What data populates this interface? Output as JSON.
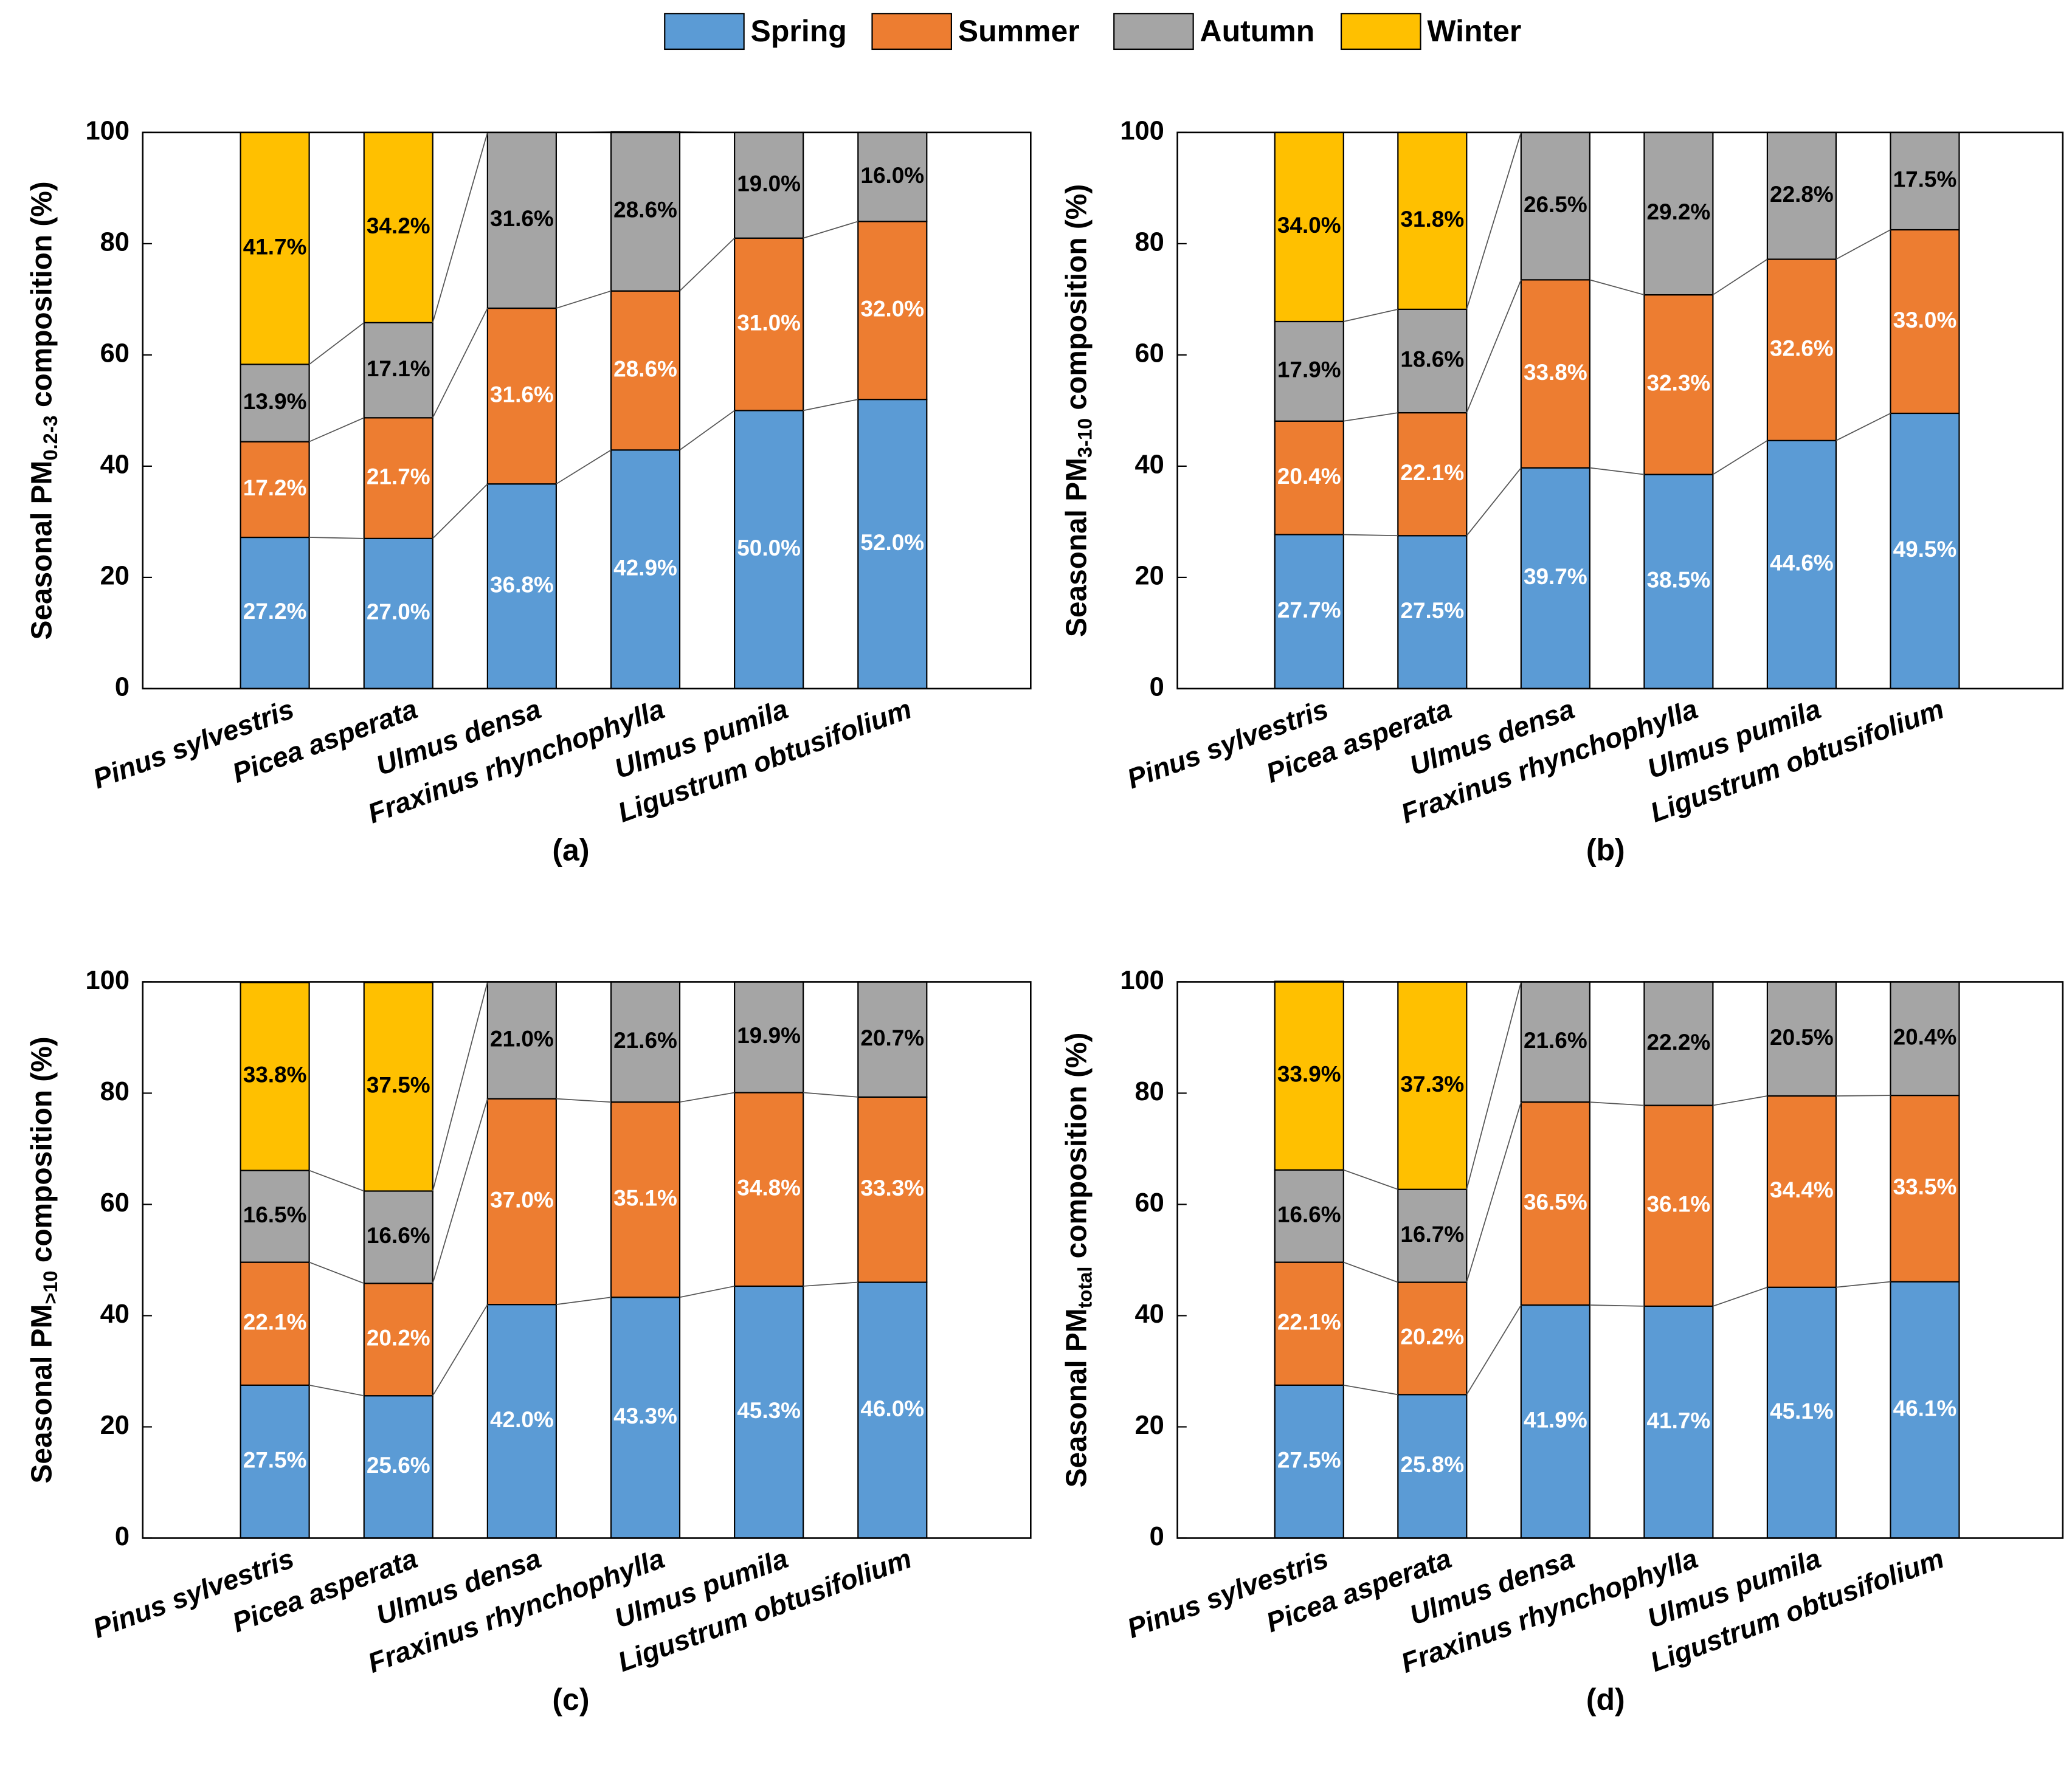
{
  "chart_data": [
    {
      "type": "stacked_bar",
      "panel_label": "(a)",
      "y_label": {
        "prefix": "Seasonal PM",
        "subscript": "0.2-3",
        "suffix": " composition (%)"
      },
      "categories": [
        "Pinus sylvestris",
        "Picea asperata",
        "Ulmus densa",
        "Fraxinus rhynchophylla",
        "Ulmus pumila",
        "Ligustrum obtusifolium"
      ],
      "ylim": [
        0,
        100
      ],
      "yticks": [
        0,
        20,
        40,
        60,
        80,
        100
      ],
      "series": [
        {
          "name": "Spring",
          "color": "#5b9bd5",
          "label_color": "#ffffff",
          "values": [
            27.2,
            27.0,
            36.8,
            42.9,
            50.0,
            52.0
          ],
          "value_labels": [
            "27.2%",
            "27.0%",
            "36.8%",
            "42.9%",
            "50.0%",
            "52.0%"
          ]
        },
        {
          "name": "Summer",
          "color": "#ed7d31",
          "label_color": "#ffffff",
          "values": [
            17.2,
            21.7,
            31.6,
            28.6,
            31.0,
            32.0
          ],
          "value_labels": [
            "17.2%",
            "21.7%",
            "31.6%",
            "28.6%",
            "31.0%",
            "32.0%"
          ]
        },
        {
          "name": "Autumn",
          "color": "#a5a5a5",
          "label_color": "#000000",
          "values": [
            13.9,
            17.1,
            31.6,
            28.6,
            19.0,
            16.0
          ],
          "value_labels": [
            "13.9%",
            "17.1%",
            "31.6%",
            "28.6%",
            "19.0%",
            "16.0%"
          ]
        },
        {
          "name": "Winter",
          "color": "#ffc000",
          "label_color": "#000000",
          "values": [
            41.7,
            34.2,
            null,
            null,
            null,
            null
          ],
          "value_labels": [
            "41.7%",
            "34.2%",
            null,
            null,
            null,
            null
          ]
        }
      ]
    },
    {
      "type": "stacked_bar",
      "panel_label": "(b)",
      "y_label": {
        "prefix": "Seasonal PM",
        "subscript": "3-10",
        "suffix": " composition (%)"
      },
      "categories": [
        "Pinus sylvestris",
        "Picea asperata",
        "Ulmus densa",
        "Fraxinus rhynchophylla",
        "Ulmus pumila",
        "Ligustrum obtusifolium"
      ],
      "ylim": [
        0,
        100
      ],
      "yticks": [
        0,
        20,
        40,
        60,
        80,
        100
      ],
      "series": [
        {
          "name": "Spring",
          "color": "#5b9bd5",
          "label_color": "#ffffff",
          "values": [
            27.7,
            27.5,
            39.7,
            38.5,
            44.6,
            49.5
          ],
          "value_labels": [
            "27.7%",
            "27.5%",
            "39.7%",
            "38.5%",
            "44.6%",
            "49.5%"
          ]
        },
        {
          "name": "Summer",
          "color": "#ed7d31",
          "label_color": "#ffffff",
          "values": [
            20.4,
            22.1,
            33.8,
            32.3,
            32.6,
            33.0
          ],
          "value_labels": [
            "20.4%",
            "22.1%",
            "33.8%",
            "32.3%",
            "32.6%",
            "33.0%"
          ]
        },
        {
          "name": "Autumn",
          "color": "#a5a5a5",
          "label_color": "#000000",
          "values": [
            17.9,
            18.6,
            26.5,
            29.2,
            22.8,
            17.5
          ],
          "value_labels": [
            "17.9%",
            "18.6%",
            "26.5%",
            "29.2%",
            "22.8%",
            "17.5%"
          ]
        },
        {
          "name": "Winter",
          "color": "#ffc000",
          "label_color": "#000000",
          "values": [
            34.0,
            31.8,
            null,
            null,
            null,
            null
          ],
          "value_labels": [
            "34.0%",
            "31.8%",
            null,
            null,
            null,
            null
          ]
        }
      ]
    },
    {
      "type": "stacked_bar",
      "panel_label": "(c)",
      "y_label": {
        "prefix": "Seasonal PM",
        "subscript": ">10",
        "suffix": " composition (%)"
      },
      "categories": [
        "Pinus sylvestris",
        "Picea asperata",
        "Ulmus densa",
        "Fraxinus rhynchophylla",
        "Ulmus pumila",
        "Ligustrum obtusifolium"
      ],
      "ylim": [
        0,
        100
      ],
      "yticks": [
        0,
        20,
        40,
        60,
        80,
        100
      ],
      "series": [
        {
          "name": "Spring",
          "color": "#5b9bd5",
          "label_color": "#ffffff",
          "values": [
            27.5,
            25.6,
            42.0,
            43.3,
            45.3,
            46.0
          ],
          "value_labels": [
            "27.5%",
            "25.6%",
            "42.0%",
            "43.3%",
            "45.3%",
            "46.0%"
          ]
        },
        {
          "name": "Summer",
          "color": "#ed7d31",
          "label_color": "#ffffff",
          "values": [
            22.1,
            20.2,
            37.0,
            35.1,
            34.8,
            33.3
          ],
          "value_labels": [
            "22.1%",
            "20.2%",
            "37.0%",
            "35.1%",
            "34.8%",
            "33.3%"
          ]
        },
        {
          "name": "Autumn",
          "color": "#a5a5a5",
          "label_color": "#000000",
          "values": [
            16.5,
            16.6,
            21.0,
            21.6,
            19.9,
            20.7
          ],
          "value_labels": [
            "16.5%",
            "16.6%",
            "21.0%",
            "21.6%",
            "19.9%",
            "20.7%"
          ]
        },
        {
          "name": "Winter",
          "color": "#ffc000",
          "label_color": "#000000",
          "values": [
            33.8,
            37.5,
            null,
            null,
            null,
            null
          ],
          "value_labels": [
            "33.8%",
            "37.5%",
            null,
            null,
            null,
            null
          ]
        }
      ]
    },
    {
      "type": "stacked_bar",
      "panel_label": "(d)",
      "y_label": {
        "prefix": "Seasonal PM",
        "subscript": "total",
        "suffix": " composition (%)"
      },
      "categories": [
        "Pinus sylvestris",
        "Picea asperata",
        "Ulmus densa",
        "Fraxinus rhynchophylla",
        "Ulmus pumila",
        "Ligustrum obtusifolium"
      ],
      "ylim": [
        0,
        100
      ],
      "yticks": [
        0,
        20,
        40,
        60,
        80,
        100
      ],
      "series": [
        {
          "name": "Spring",
          "color": "#5b9bd5",
          "label_color": "#ffffff",
          "values": [
            27.5,
            25.8,
            41.9,
            41.7,
            45.1,
            46.1
          ],
          "value_labels": [
            "27.5%",
            "25.8%",
            "41.9%",
            "41.7%",
            "45.1%",
            "46.1%"
          ]
        },
        {
          "name": "Summer",
          "color": "#ed7d31",
          "label_color": "#ffffff",
          "values": [
            22.1,
            20.2,
            36.5,
            36.1,
            34.4,
            33.5
          ],
          "value_labels": [
            "22.1%",
            "20.2%",
            "36.5%",
            "36.1%",
            "34.4%",
            "33.5%"
          ]
        },
        {
          "name": "Autumn",
          "color": "#a5a5a5",
          "label_color": "#000000",
          "values": [
            16.6,
            16.7,
            21.6,
            22.2,
            20.5,
            20.4
          ],
          "value_labels": [
            "16.6%",
            "16.7%",
            "21.6%",
            "22.2%",
            "20.5%",
            "20.4%"
          ]
        },
        {
          "name": "Winter",
          "color": "#ffc000",
          "label_color": "#000000",
          "values": [
            33.9,
            37.3,
            null,
            null,
            null,
            null
          ],
          "value_labels": [
            "33.9%",
            "37.3%",
            null,
            null,
            null,
            null
          ]
        }
      ]
    }
  ]
}
